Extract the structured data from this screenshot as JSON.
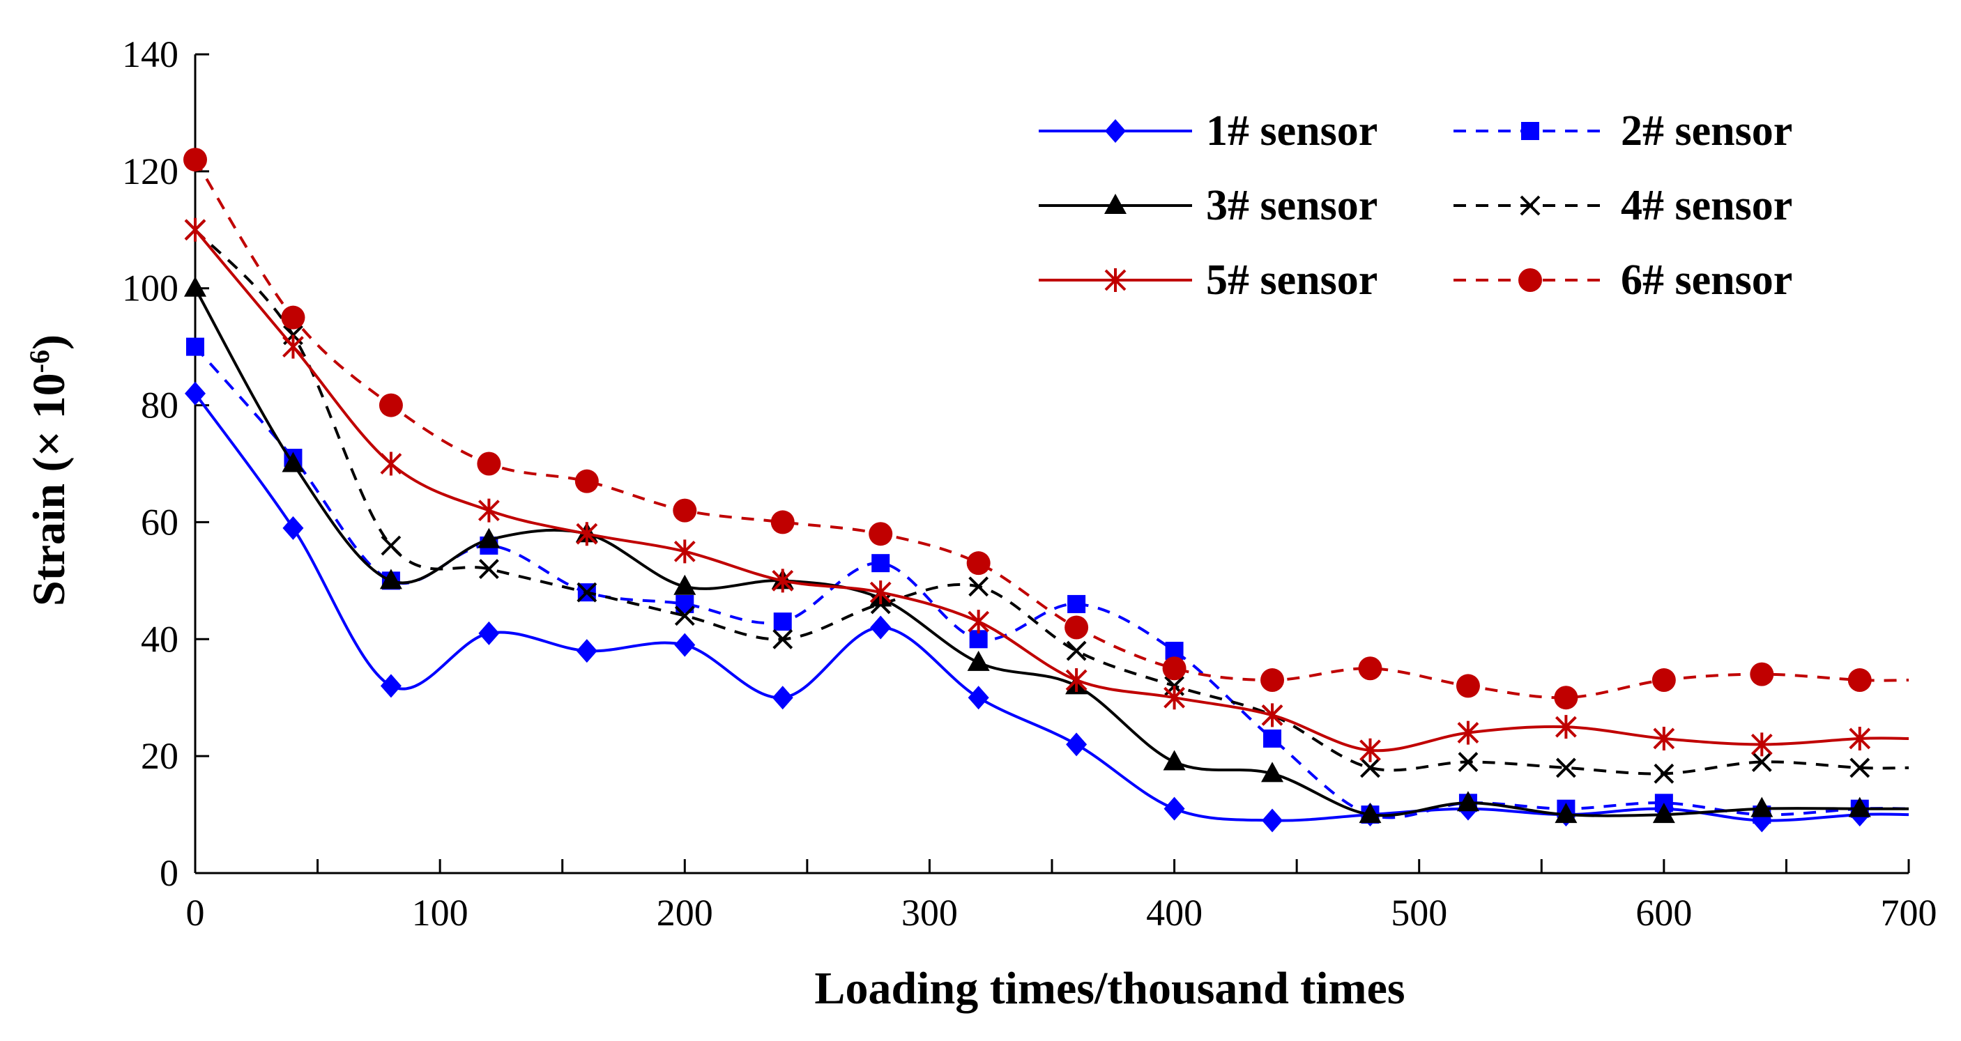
{
  "chart_data": {
    "type": "line",
    "xlabel": "Loading times/thousand times",
    "ylabel": "Strain (× 10",
    "ylabel_exponent": "-6",
    "ylabel_suffix": ")",
    "xlim": [
      0,
      700
    ],
    "ylim": [
      0,
      140
    ],
    "x_ticks": [
      0,
      100,
      200,
      300,
      400,
      500,
      600,
      700
    ],
    "y_ticks": [
      0,
      20,
      40,
      60,
      80,
      100,
      120,
      140
    ],
    "grid": false,
    "legend_position": "top-right",
    "x": [
      0,
      40,
      80,
      120,
      160,
      200,
      240,
      280,
      320,
      360,
      400,
      440,
      480,
      520,
      560,
      600,
      640,
      680
    ],
    "series": [
      {
        "name": "1# sensor",
        "color": "#0000ff",
        "dash": "solid",
        "marker": "diamond",
        "values": [
          82,
          59,
          32,
          41,
          38,
          39,
          30,
          42,
          30,
          22,
          11,
          9,
          10,
          11,
          10,
          11,
          9,
          10
        ]
      },
      {
        "name": "2# sensor",
        "color": "#0000ff",
        "dash": "dashed",
        "marker": "square",
        "values": [
          90,
          71,
          50,
          56,
          48,
          46,
          43,
          53,
          40,
          46,
          38,
          23,
          10,
          12,
          11,
          12,
          10,
          11
        ]
      },
      {
        "name": "3# sensor",
        "color": "#000000",
        "dash": "solid",
        "marker": "triangle",
        "values": [
          100,
          70,
          50,
          57,
          58,
          49,
          50,
          47,
          36,
          32,
          19,
          17,
          10,
          12,
          10,
          10,
          11,
          11
        ]
      },
      {
        "name": "4# sensor",
        "color": "#000000",
        "dash": "dashed",
        "marker": "x",
        "values": [
          110,
          92,
          56,
          52,
          48,
          44,
          40,
          46,
          49,
          38,
          32,
          27,
          18,
          19,
          18,
          17,
          19,
          18
        ]
      },
      {
        "name": "5# sensor",
        "color": "#c00000",
        "dash": "solid",
        "marker": "asterisk",
        "values": [
          110,
          90,
          70,
          62,
          58,
          55,
          50,
          48,
          43,
          33,
          30,
          27,
          21,
          24,
          25,
          23,
          22,
          23
        ]
      },
      {
        "name": "6# sensor",
        "color": "#c00000",
        "dash": "dashed",
        "marker": "circle",
        "values": [
          122,
          95,
          80,
          70,
          67,
          62,
          60,
          58,
          53,
          42,
          35,
          33,
          35,
          32,
          30,
          33,
          34,
          33
        ]
      }
    ]
  }
}
